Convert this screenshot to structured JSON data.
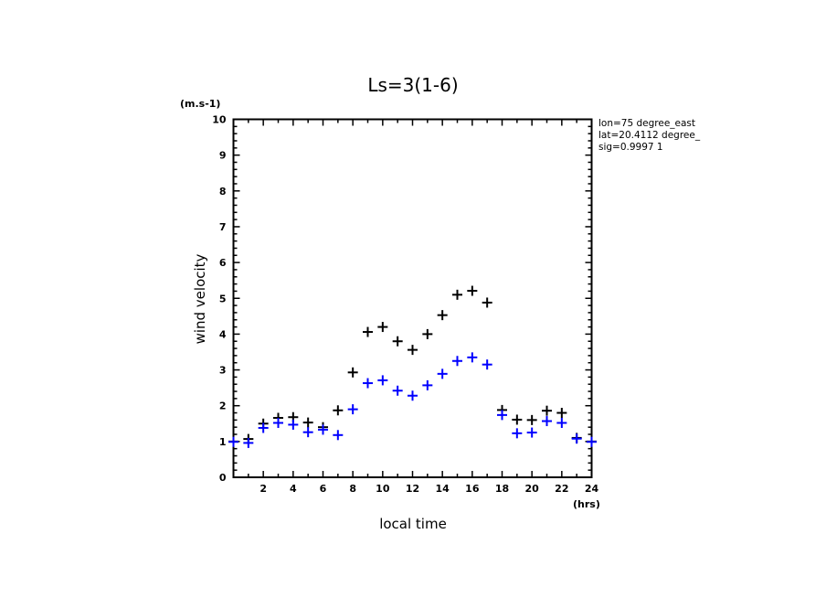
{
  "chart_data": {
    "type": "scatter",
    "title": "Ls=3(1-6)",
    "xlabel": "local time",
    "ylabel": "wind velocity",
    "x_unit": "(hrs)",
    "y_unit": "(m.s-1)",
    "xlim": [
      0,
      24
    ],
    "ylim": [
      0,
      10
    ],
    "x_ticks": [
      2,
      4,
      6,
      8,
      10,
      12,
      14,
      16,
      18,
      20,
      22,
      24
    ],
    "y_ticks": [
      0,
      1,
      2,
      3,
      4,
      5,
      6,
      7,
      8,
      9,
      10
    ],
    "grid": false,
    "annotations": [
      "lon=75 degree_east",
      "lat=20.4112 degree_",
      "sig=0.9997 1"
    ],
    "x": [
      0,
      1,
      2,
      3,
      4,
      5,
      6,
      7,
      8,
      9,
      10,
      11,
      12,
      13,
      14,
      15,
      16,
      17,
      18,
      19,
      20,
      21,
      22,
      23,
      24
    ],
    "series": [
      {
        "name": "series-black",
        "color": "#000000",
        "marker": "+",
        "values": [
          1.0,
          1.07,
          1.5,
          1.66,
          1.68,
          1.53,
          1.4,
          1.87,
          2.93,
          4.06,
          4.2,
          3.8,
          3.56,
          4.0,
          4.53,
          5.1,
          5.21,
          4.88,
          1.88,
          1.61,
          1.6,
          1.86,
          1.8,
          1.1,
          1.0
        ]
      },
      {
        "name": "series-blue",
        "color": "#0000ff",
        "marker": "+",
        "values": [
          0.99,
          0.96,
          1.38,
          1.52,
          1.47,
          1.26,
          1.33,
          1.18,
          1.9,
          2.63,
          2.71,
          2.42,
          2.28,
          2.57,
          2.89,
          3.25,
          3.35,
          3.15,
          1.74,
          1.23,
          1.25,
          1.57,
          1.52,
          1.08,
          0.99
        ]
      }
    ]
  }
}
